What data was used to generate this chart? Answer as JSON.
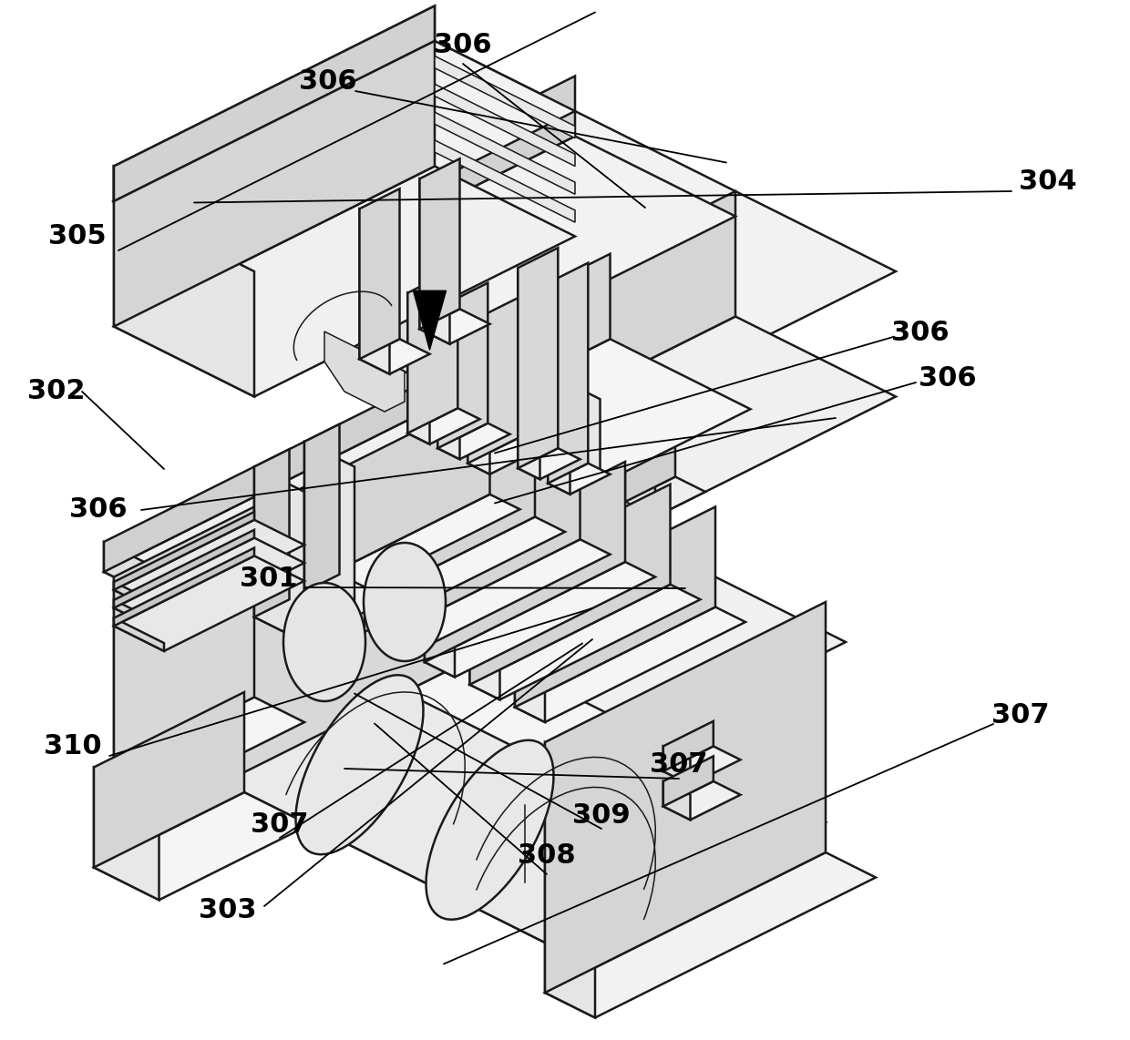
{
  "bg_color": "#ffffff",
  "lc": "#1a1a1a",
  "lw": 1.8,
  "lw_thin": 1.1,
  "lw_label": 1.3,
  "figsize": [
    12.4,
    11.42
  ],
  "dpi": 100,
  "label_fs": 22,
  "label_fw": "bold",
  "iso": {
    "xi": 1.0,
    "yi": -0.5,
    "xj": 1.0,
    "yj": 0.5,
    "zx": 0.0,
    "zy": 1.0
  }
}
